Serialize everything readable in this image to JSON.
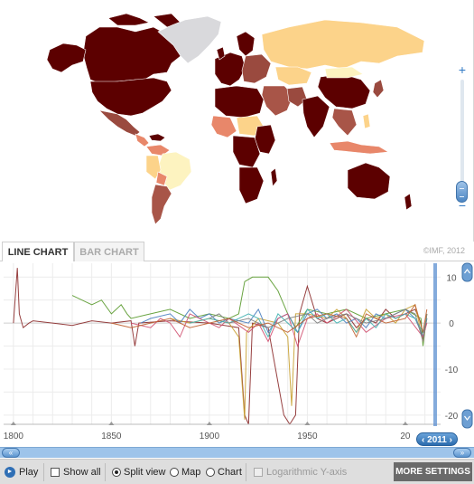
{
  "map": {
    "zoom_plus_label": "+",
    "zoom_minus_label": "−",
    "copyright": "©IMF, 2012",
    "legend_colors": {
      "darkest": "#5c0000",
      "dark": "#9a4a3f",
      "medium_dark": "#a85548",
      "medium": "#e8876a",
      "light_orange": "#fcd38a",
      "pale_yellow": "#fdf3c0",
      "no_data": "#d9d9dc"
    }
  },
  "tabs": [
    {
      "label": "LINE CHART",
      "active": true
    },
    {
      "label": "BAR CHART",
      "active": false
    }
  ],
  "chart_data": {
    "type": "line",
    "title": "",
    "xlabel": "",
    "ylabel": "",
    "x_ticks": [
      "1800",
      "1850",
      "1900",
      "1950",
      "20"
    ],
    "y_ticks": [
      "10",
      "0",
      "-10",
      "-20"
    ],
    "xlim": [
      1795,
      2018
    ],
    "ylim": [
      -22,
      13
    ],
    "selected_year": "2011",
    "grid": true,
    "series": [
      {
        "color": "#8b2a2a",
        "points": [
          [
            1800,
            0
          ],
          [
            1802,
            12
          ],
          [
            1803,
            2
          ],
          [
            1805,
            -1
          ],
          [
            1808,
            0
          ],
          [
            1810,
            0.5
          ],
          [
            1820,
            0
          ],
          [
            1830,
            -0.5
          ],
          [
            1840,
            0.5
          ],
          [
            1850,
            0
          ],
          [
            1860,
            0.5
          ],
          [
            1862,
            -5
          ],
          [
            1864,
            0
          ],
          [
            1880,
            0.5
          ],
          [
            1900,
            0
          ],
          [
            1915,
            -1
          ],
          [
            1918,
            -20
          ],
          [
            1920,
            -22
          ],
          [
            1922,
            0
          ],
          [
            1930,
            -1
          ],
          [
            1938,
            -20
          ],
          [
            1941,
            -22
          ],
          [
            1944,
            -20
          ],
          [
            1946,
            2
          ],
          [
            1950,
            8
          ],
          [
            1955,
            1
          ],
          [
            1960,
            0
          ],
          [
            1970,
            2
          ],
          [
            1975,
            -1
          ],
          [
            1980,
            1
          ],
          [
            1985,
            0
          ],
          [
            1990,
            3
          ],
          [
            1995,
            1
          ],
          [
            2000,
            2
          ],
          [
            2005,
            3
          ],
          [
            2008,
            0
          ],
          [
            2009,
            -4
          ],
          [
            2011,
            1
          ]
        ]
      },
      {
        "color": "#5a9a2e",
        "points": [
          [
            1830,
            6
          ],
          [
            1835,
            5
          ],
          [
            1840,
            4
          ],
          [
            1845,
            5
          ],
          [
            1850,
            2
          ],
          [
            1855,
            4
          ],
          [
            1858,
            2
          ],
          [
            1860,
            1
          ],
          [
            1870,
            2
          ],
          [
            1880,
            3
          ],
          [
            1890,
            1
          ],
          [
            1900,
            2
          ],
          [
            1910,
            1
          ],
          [
            1915,
            2
          ],
          [
            1918,
            9
          ],
          [
            1922,
            10
          ],
          [
            1930,
            10
          ],
          [
            1935,
            7
          ],
          [
            1938,
            4
          ],
          [
            1940,
            2
          ],
          [
            1944,
            -1
          ],
          [
            1950,
            3
          ],
          [
            1960,
            2
          ],
          [
            1970,
            3
          ],
          [
            1980,
            1
          ],
          [
            1990,
            2
          ],
          [
            2000,
            3
          ],
          [
            2008,
            1
          ],
          [
            2009,
            -5
          ],
          [
            2011,
            2
          ]
        ]
      },
      {
        "color": "#c8a030",
        "points": [
          [
            1880,
            1
          ],
          [
            1890,
            0
          ],
          [
            1900,
            1
          ],
          [
            1910,
            0
          ],
          [
            1915,
            -3
          ],
          [
            1918,
            -21
          ],
          [
            1919,
            -2
          ],
          [
            1925,
            1
          ],
          [
            1935,
            0
          ],
          [
            1940,
            -3
          ],
          [
            1942,
            -18
          ],
          [
            1944,
            2
          ],
          [
            1950,
            2
          ],
          [
            1960,
            1
          ],
          [
            1965,
            3
          ],
          [
            1970,
            1
          ],
          [
            1975,
            -2
          ],
          [
            1980,
            3
          ],
          [
            1985,
            1
          ],
          [
            1990,
            2
          ],
          [
            1995,
            0
          ],
          [
            2000,
            3
          ],
          [
            2005,
            4
          ],
          [
            2009,
            -4
          ],
          [
            2011,
            2
          ]
        ]
      },
      {
        "color": "#4a7fc0",
        "points": [
          [
            1865,
            0
          ],
          [
            1870,
            1
          ],
          [
            1880,
            2
          ],
          [
            1885,
            0
          ],
          [
            1890,
            3
          ],
          [
            1895,
            1
          ],
          [
            1900,
            2
          ],
          [
            1905,
            0
          ],
          [
            1910,
            1
          ],
          [
            1920,
            0
          ],
          [
            1925,
            3
          ],
          [
            1930,
            -2
          ],
          [
            1935,
            1
          ],
          [
            1940,
            2
          ],
          [
            1945,
            -2
          ],
          [
            1950,
            2
          ],
          [
            1955,
            3
          ],
          [
            1960,
            1
          ],
          [
            1965,
            2
          ],
          [
            1970,
            0
          ],
          [
            1975,
            1
          ],
          [
            1980,
            -1
          ],
          [
            1985,
            2
          ],
          [
            1990,
            1
          ],
          [
            1995,
            2
          ],
          [
            2000,
            3
          ],
          [
            2005,
            1
          ],
          [
            2009,
            -3
          ],
          [
            2011,
            1
          ]
        ]
      },
      {
        "color": "#d05070",
        "points": [
          [
            1860,
            0
          ],
          [
            1870,
            -1
          ],
          [
            1875,
            1
          ],
          [
            1880,
            0
          ],
          [
            1885,
            -3
          ],
          [
            1890,
            2
          ],
          [
            1900,
            0
          ],
          [
            1905,
            -1
          ],
          [
            1910,
            1
          ],
          [
            1920,
            -2
          ],
          [
            1925,
            0
          ],
          [
            1930,
            -4
          ],
          [
            1935,
            1
          ],
          [
            1940,
            2
          ],
          [
            1945,
            -5
          ],
          [
            1950,
            1
          ],
          [
            1955,
            2
          ],
          [
            1960,
            0
          ],
          [
            1970,
            3
          ],
          [
            1980,
            -2
          ],
          [
            1990,
            1
          ],
          [
            2000,
            2
          ],
          [
            2009,
            -3
          ],
          [
            2011,
            0
          ]
        ]
      },
      {
        "color": "#40b0b0",
        "points": [
          [
            1890,
            0
          ],
          [
            1900,
            1
          ],
          [
            1910,
            0
          ],
          [
            1920,
            2
          ],
          [
            1925,
            1
          ],
          [
            1930,
            -3
          ],
          [
            1935,
            2
          ],
          [
            1940,
            0
          ],
          [
            1945,
            -2
          ],
          [
            1950,
            3
          ],
          [
            1955,
            1
          ],
          [
            1960,
            2
          ],
          [
            1965,
            0
          ],
          [
            1970,
            1
          ],
          [
            1975,
            -2
          ],
          [
            1980,
            1
          ],
          [
            1985,
            -1
          ],
          [
            1990,
            2
          ],
          [
            1995,
            1
          ],
          [
            2000,
            2
          ],
          [
            2005,
            1
          ],
          [
            2009,
            -2
          ],
          [
            2011,
            1
          ]
        ]
      },
      {
        "color": "#808080",
        "points": [
          [
            1900,
            1
          ],
          [
            1905,
            2
          ],
          [
            1910,
            0
          ],
          [
            1920,
            1
          ],
          [
            1930,
            -1
          ],
          [
            1940,
            1
          ],
          [
            1950,
            2
          ],
          [
            1955,
            0
          ],
          [
            1960,
            1
          ],
          [
            1970,
            2
          ],
          [
            1980,
            0
          ],
          [
            1990,
            1
          ],
          [
            2000,
            3
          ],
          [
            2005,
            2
          ],
          [
            2009,
            -4
          ],
          [
            2011,
            2
          ]
        ]
      },
      {
        "color": "#c06030",
        "points": [
          [
            1850,
            0
          ],
          [
            1860,
            -1
          ],
          [
            1870,
            0
          ],
          [
            1880,
            1
          ],
          [
            1890,
            -1
          ],
          [
            1900,
            0
          ],
          [
            1910,
            1
          ],
          [
            1920,
            -1
          ],
          [
            1930,
            0
          ],
          [
            1940,
            -2
          ],
          [
            1950,
            1
          ],
          [
            1960,
            2
          ],
          [
            1970,
            1
          ],
          [
            1975,
            -3
          ],
          [
            1980,
            2
          ],
          [
            1990,
            0
          ],
          [
            2000,
            1
          ],
          [
            2005,
            4
          ],
          [
            2009,
            -2
          ],
          [
            2011,
            3
          ]
        ]
      }
    ]
  },
  "scroll": {
    "left_label": "«",
    "right_label": "»"
  },
  "year_badge": {
    "left_arrow": "‹",
    "year": "2011",
    "right_arrow": "›"
  },
  "toolbar": {
    "play_label": "Play",
    "show_all_label": "Show all",
    "split_view_label": "Split view",
    "map_label": "Map",
    "chart_label": "Chart",
    "log_axis_label": "Logarithmic Y-axis",
    "more_settings_label": "MORE SETTINGS",
    "view_mode_selected": "Split view"
  }
}
